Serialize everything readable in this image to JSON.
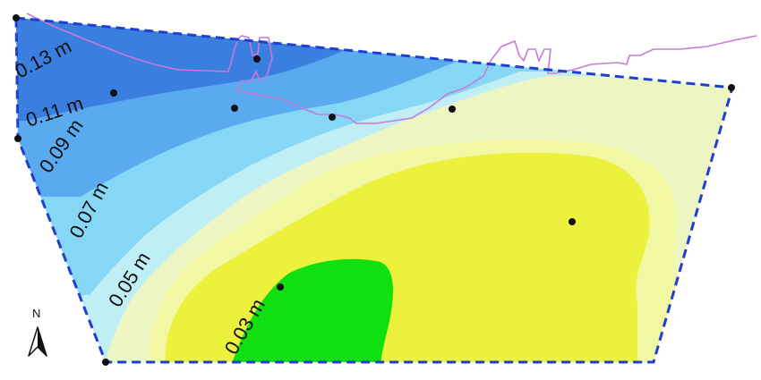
{
  "map": {
    "contour_labels": {
      "c013": "0.13 m",
      "c011": "0.11 m",
      "c009": "0.09 m",
      "c007": "0.07 m",
      "c005": "0.05 m",
      "c003": "0.03 m"
    },
    "north_letter": "N",
    "colors": {
      "boundary": "#1f3fd0",
      "shoreline": "#c87ad8",
      "points": "#111111",
      "band_013": "#3a7ee0",
      "band_011": "#5aaaf0",
      "band_009": "#86d6f6",
      "band_007": "#bfeff4",
      "band_005": "#edf6c2",
      "band_004": "#f2f7a3",
      "band_003": "#ecf23c",
      "band_002": "#10e010"
    },
    "icons": [
      "north-arrow-icon"
    ]
  }
}
